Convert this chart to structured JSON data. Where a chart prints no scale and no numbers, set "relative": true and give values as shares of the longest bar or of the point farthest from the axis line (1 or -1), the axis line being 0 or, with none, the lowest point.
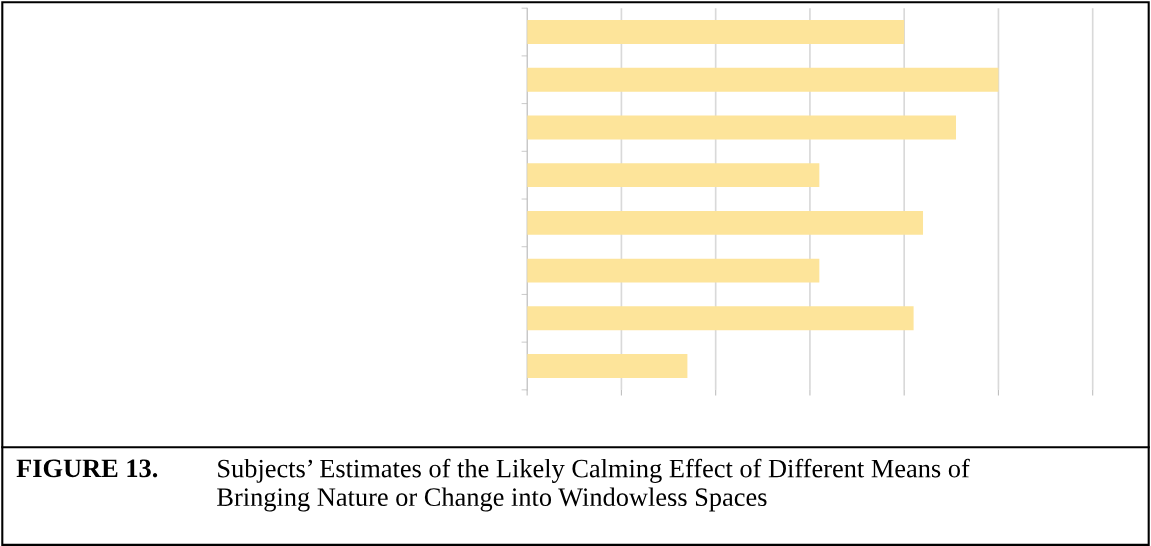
{
  "chart_data": {
    "type": "bar",
    "orientation": "horizontal",
    "relative": true,
    "categories": [
      null,
      null,
      null,
      null,
      null,
      null,
      null,
      null
    ],
    "values": [
      0.8,
      1.0,
      0.91,
      0.62,
      0.84,
      0.62,
      0.82,
      0.34
    ],
    "color": "#fde49a",
    "grid": "x",
    "title": "FIGURE 13.",
    "subtitle": "Subjects’ Estimates of the Likely Calming Effect of Different Means of\nBringing Nature or Change into Windowless Spaces"
  }
}
